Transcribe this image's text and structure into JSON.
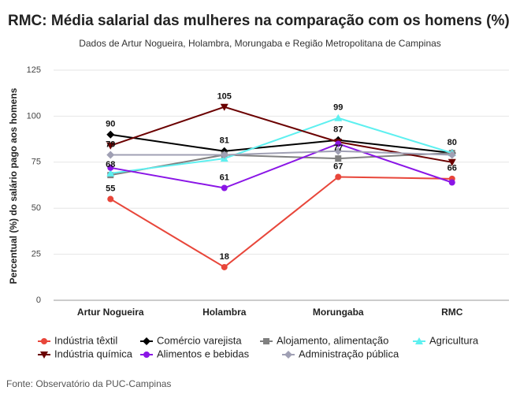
{
  "chart_data": {
    "type": "line",
    "title": "RMC: Média salarial das mulheres na comparação com os homens (%)",
    "subtitle": "Dados de Artur Nogueira, Holambra, Morungaba e Região Metropolitana de Campinas",
    "y_label": "Percentual (%) do salário pago aos homens",
    "source": "Fonte: Observatório da PUC-Campinas",
    "categories": [
      "Artur Nogueira",
      "Holambra",
      "Morungaba",
      "RMC"
    ],
    "ylim": [
      0,
      125
    ],
    "yticks": [
      0,
      25,
      50,
      75,
      100,
      125
    ],
    "grid": true,
    "series": [
      {
        "name": "Indústria têxtil",
        "color": "#e8463a",
        "marker": "circle",
        "values": [
          55,
          18,
          67,
          66
        ],
        "labels": [
          true,
          true,
          true,
          true
        ]
      },
      {
        "name": "Comércio varejista",
        "color": "#000000",
        "marker": "diamond",
        "values": [
          90,
          81,
          87,
          80
        ],
        "labels": [
          true,
          true,
          true,
          true
        ]
      },
      {
        "name": "Alojamento, alimentação",
        "color": "#808080",
        "marker": "square",
        "values": [
          68,
          79,
          77,
          80
        ],
        "labels": [
          true,
          false,
          true,
          false
        ]
      },
      {
        "name": "Agricultura",
        "color": "#5ef0f0",
        "marker": "triangle",
        "values": [
          69,
          77,
          99,
          80
        ],
        "labels": [
          false,
          false,
          true,
          false
        ]
      },
      {
        "name": "Indústria química",
        "color": "#6b0000",
        "marker": "triangle-down",
        "values": [
          84,
          105,
          86,
          75
        ],
        "labels": [
          false,
          true,
          false,
          false
        ]
      },
      {
        "name": "Alimentos e bebidas",
        "color": "#8a15e6",
        "marker": "circle",
        "values": [
          72,
          61,
          85,
          64
        ],
        "labels": [
          false,
          true,
          false,
          false
        ]
      },
      {
        "name": "Administração pública",
        "color": "#a0a0b4",
        "marker": "diamond",
        "values": [
          79,
          79,
          81,
          79
        ],
        "labels": [
          true,
          false,
          false,
          false
        ]
      }
    ]
  }
}
